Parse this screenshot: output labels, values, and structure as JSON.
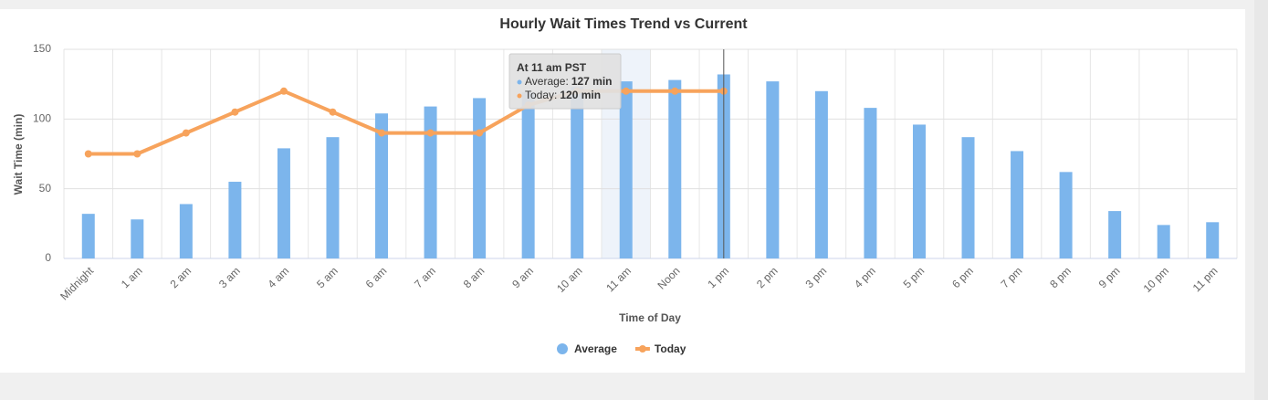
{
  "chart_data": {
    "type": "bar_line",
    "title": "Hourly Wait Times Trend vs Current",
    "x_label": "Time of Day",
    "y_label": "Wait Time (min)",
    "categories": [
      "Midnight",
      "1 am",
      "2 am",
      "3 am",
      "4 am",
      "5 am",
      "6 am",
      "7 am",
      "8 am",
      "9 am",
      "10 am",
      "11 am",
      "Noon",
      "1 pm",
      "2 pm",
      "3 pm",
      "4 pm",
      "5 pm",
      "6 pm",
      "7 pm",
      "8 pm",
      "9 pm",
      "10 pm",
      "11 pm"
    ],
    "series": [
      {
        "name": "Average",
        "type": "bar",
        "color": "#7cb5ec",
        "values": [
          32,
          28,
          39,
          55,
          79,
          87,
          104,
          109,
          115,
          119,
          123,
          127,
          128,
          132,
          127,
          120,
          108,
          96,
          87,
          77,
          62,
          34,
          24,
          26
        ]
      },
      {
        "name": "Today",
        "type": "line",
        "color": "#f7a35c",
        "values": [
          75,
          75,
          90,
          105,
          120,
          105,
          90,
          90,
          90,
          110,
          120,
          120,
          120,
          120,
          null,
          null,
          null,
          null,
          null,
          null,
          null,
          null,
          null,
          null
        ]
      }
    ],
    "ylim": [
      0,
      150
    ],
    "yticks": [
      0,
      50,
      100,
      150
    ],
    "grid": true,
    "legend": "bottom",
    "tooltip": {
      "title": "At 11 am PST",
      "lines": [
        {
          "label": "Average:",
          "value": "127 min"
        },
        {
          "label": "Today:",
          "value": "120 min"
        }
      ]
    }
  }
}
